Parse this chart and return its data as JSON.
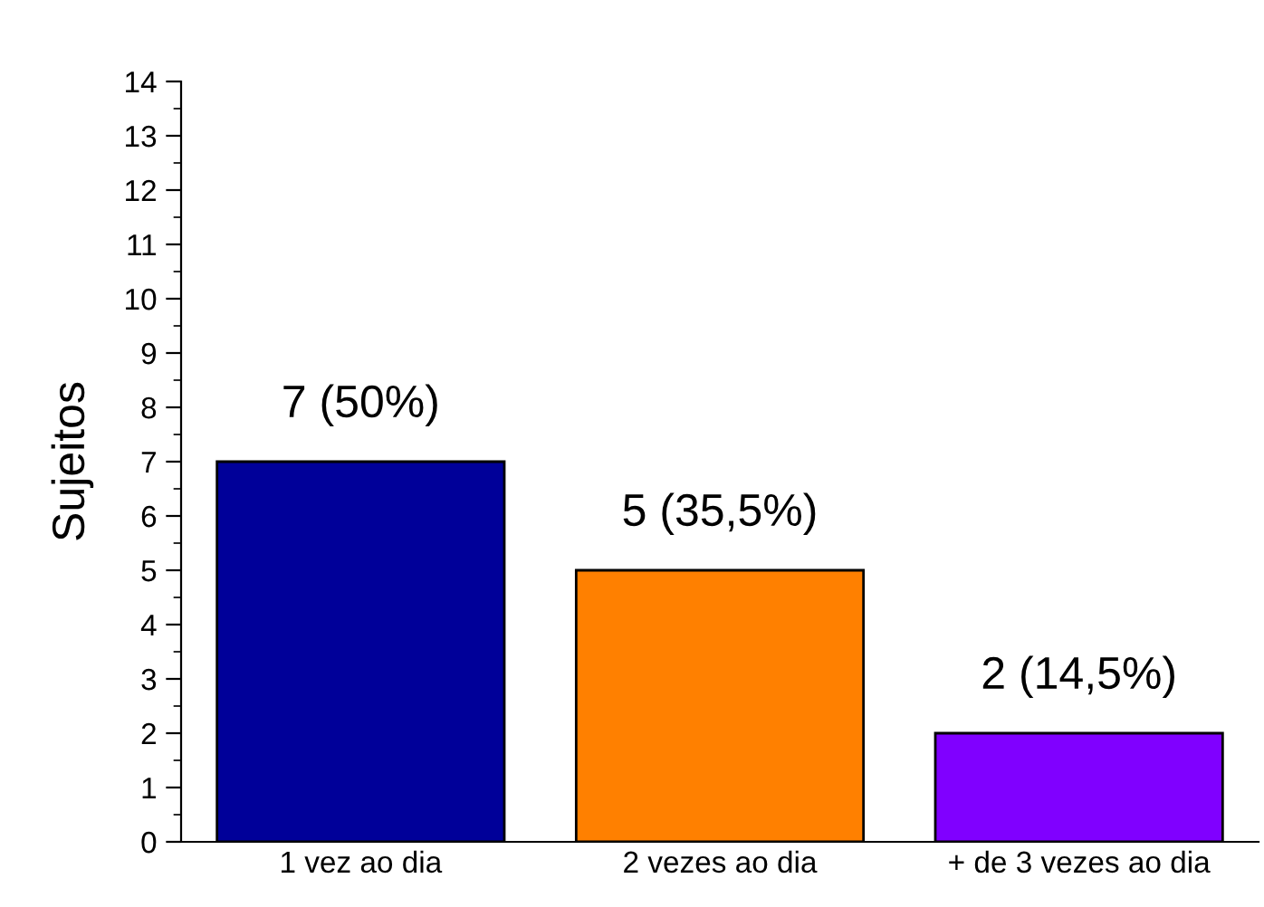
{
  "chart_data": {
    "type": "bar",
    "ylabel": "Sujeitos",
    "categories": [
      "1 vez ao dia",
      "2 vezes ao dia",
      "+ de 3 vezes ao dia"
    ],
    "values": [
      7,
      5,
      2
    ],
    "colors": [
      "#000099",
      "#ff8000",
      "#8000ff"
    ],
    "value_labels": [
      "7 (50%)",
      "5 (35,5%)",
      "2 (14,5%)"
    ],
    "ylim": [
      0,
      14
    ],
    "yticks": [
      0,
      1,
      2,
      3,
      4,
      5,
      6,
      7,
      8,
      9,
      10,
      11,
      12,
      13,
      14
    ],
    "grid": false,
    "legend": false
  }
}
